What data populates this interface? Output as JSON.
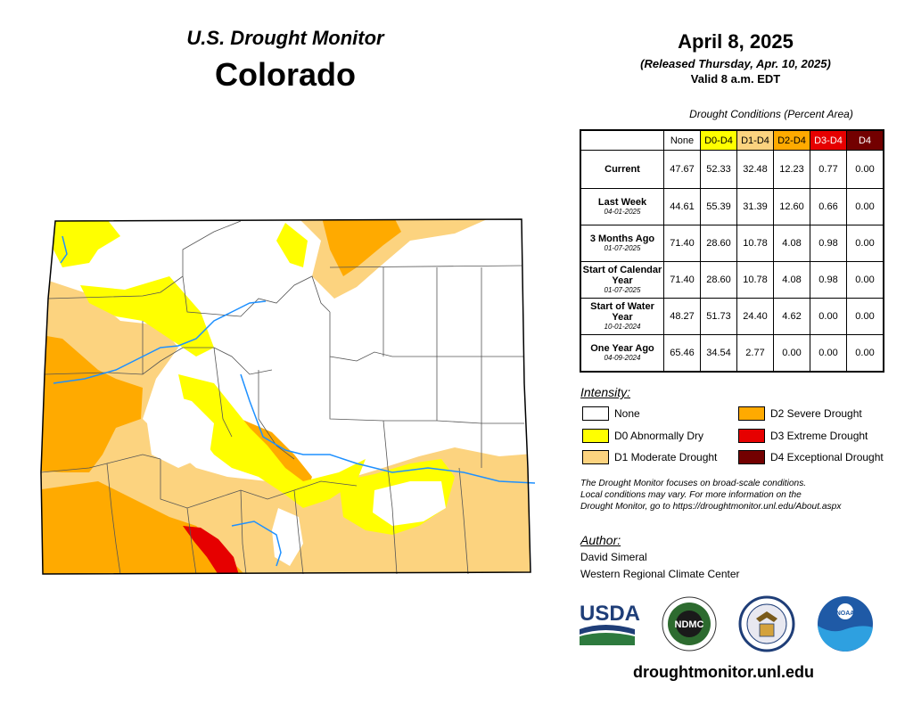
{
  "header": {
    "title": "U.S. Drought Monitor",
    "state": "Colorado",
    "date": "April 8, 2025",
    "released": "(Released Thursday, Apr. 10, 2025)",
    "valid": "Valid 8 a.m. EDT"
  },
  "table": {
    "caption": "Drought Conditions (Percent Area)",
    "columns": [
      {
        "label": "None",
        "color": "#ffffff"
      },
      {
        "label": "D0-D4",
        "color": "#ffff00"
      },
      {
        "label": "D1-D4",
        "color": "#fcd37f"
      },
      {
        "label": "D2-D4",
        "color": "#ffaa00"
      },
      {
        "label": "D3-D4",
        "color": "#e60000"
      },
      {
        "label": "D4",
        "color": "#730000"
      }
    ],
    "rows": [
      {
        "label": "Current",
        "date": "",
        "values": [
          "47.67",
          "52.33",
          "32.48",
          "12.23",
          "0.77",
          "0.00"
        ]
      },
      {
        "label": "Last Week",
        "date": "04-01-2025",
        "values": [
          "44.61",
          "55.39",
          "31.39",
          "12.60",
          "0.66",
          "0.00"
        ]
      },
      {
        "label": "3 Months Ago",
        "date": "01-07-2025",
        "values": [
          "71.40",
          "28.60",
          "10.78",
          "4.08",
          "0.98",
          "0.00"
        ]
      },
      {
        "label": "Start of Calendar Year",
        "date": "01-07-2025",
        "values": [
          "71.40",
          "28.60",
          "10.78",
          "4.08",
          "0.98",
          "0.00"
        ]
      },
      {
        "label": "Start of Water Year",
        "date": "10-01-2024",
        "values": [
          "48.27",
          "51.73",
          "24.40",
          "4.62",
          "0.00",
          "0.00"
        ]
      },
      {
        "label": "One Year Ago",
        "date": "04-09-2024",
        "values": [
          "65.46",
          "34.54",
          "2.77",
          "0.00",
          "0.00",
          "0.00"
        ]
      }
    ]
  },
  "legend": {
    "title": "Intensity:",
    "items": [
      {
        "label": "None",
        "color": "#ffffff"
      },
      {
        "label": "D0 Abnormally Dry",
        "color": "#ffff00"
      },
      {
        "label": "D1 Moderate Drought",
        "color": "#fcd37f"
      },
      {
        "label": "D2 Severe Drought",
        "color": "#ffaa00"
      },
      {
        "label": "D3 Extreme Drought",
        "color": "#e60000"
      },
      {
        "label": "D4 Exceptional Drought",
        "color": "#730000"
      }
    ]
  },
  "disclaimer": {
    "line1": "The Drought Monitor focuses on broad-scale conditions.",
    "line2": "Local conditions may vary. For more information on the",
    "line3": "Drought Monitor, go to https://droughtmonitor.unl.edu/About.aspx"
  },
  "author": {
    "title": "Author:",
    "name": "David Simeral",
    "org": "Western Regional Climate Center"
  },
  "logos": {
    "usda": "USDA",
    "ndmc": "NDMC",
    "noaa": "NOAA"
  },
  "footer": {
    "url": "droughtmonitor.unl.edu"
  },
  "colors": {
    "river": "#1e90ff",
    "county_line": "#555555"
  }
}
